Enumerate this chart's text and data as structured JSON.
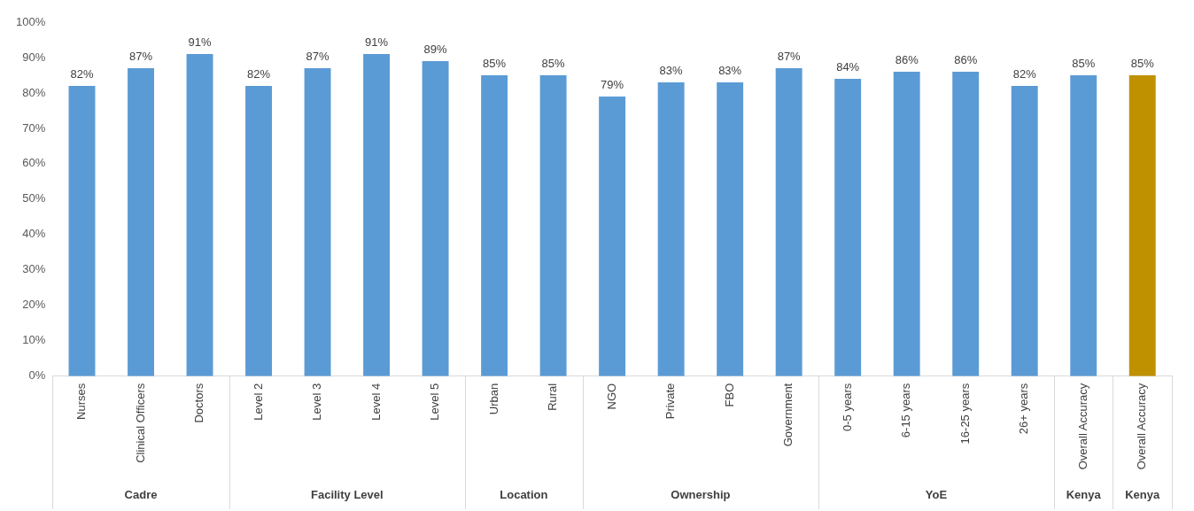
{
  "chart_data": {
    "type": "bar",
    "categories": [
      "Nurses",
      "Clinical Officers",
      "Doctors",
      "Level 2",
      "Level 3",
      "Level 4",
      "Level 5",
      "Urban",
      "Rural",
      "NGO",
      "Private",
      "FBO",
      "Government",
      "0-5 years",
      "6-15 years",
      "16-25 years",
      "26+ years",
      "Overall Accuracy",
      "Overall Accuracy"
    ],
    "values": [
      82,
      87,
      91,
      82,
      87,
      91,
      89,
      85,
      85,
      79,
      83,
      83,
      87,
      84,
      86,
      86,
      82,
      85,
      85
    ],
    "value_labels": [
      "82%",
      "87%",
      "91%",
      "82%",
      "87%",
      "91%",
      "89%",
      "85%",
      "85%",
      "79%",
      "83%",
      "83%",
      "87%",
      "84%",
      "86%",
      "86%",
      "82%",
      "85%",
      "85%"
    ],
    "colors": [
      "#5b9bd5",
      "#5b9bd5",
      "#5b9bd5",
      "#5b9bd5",
      "#5b9bd5",
      "#5b9bd5",
      "#5b9bd5",
      "#5b9bd5",
      "#5b9bd5",
      "#5b9bd5",
      "#5b9bd5",
      "#5b9bd5",
      "#5b9bd5",
      "#5b9bd5",
      "#5b9bd5",
      "#5b9bd5",
      "#5b9bd5",
      "#5b9bd5",
      "#bf9000"
    ],
    "ylim": [
      0,
      100
    ],
    "yticks": [
      {
        "value": 0,
        "label": "0%"
      },
      {
        "value": 10,
        "label": "10%"
      },
      {
        "value": 20,
        "label": "20%"
      },
      {
        "value": 30,
        "label": "30%"
      },
      {
        "value": 40,
        "label": "40%"
      },
      {
        "value": 50,
        "label": "50%"
      },
      {
        "value": 60,
        "label": "60%"
      },
      {
        "value": 70,
        "label": "70%"
      },
      {
        "value": 80,
        "label": "80%"
      },
      {
        "value": 90,
        "label": "90%"
      },
      {
        "value": 100,
        "label": "100%"
      }
    ],
    "annotations": [
      "Cadre",
      "Facility Level",
      "Location",
      "Ownership",
      "YoE",
      "Kenya",
      "Kenya"
    ],
    "grid": false,
    "legend": false
  }
}
